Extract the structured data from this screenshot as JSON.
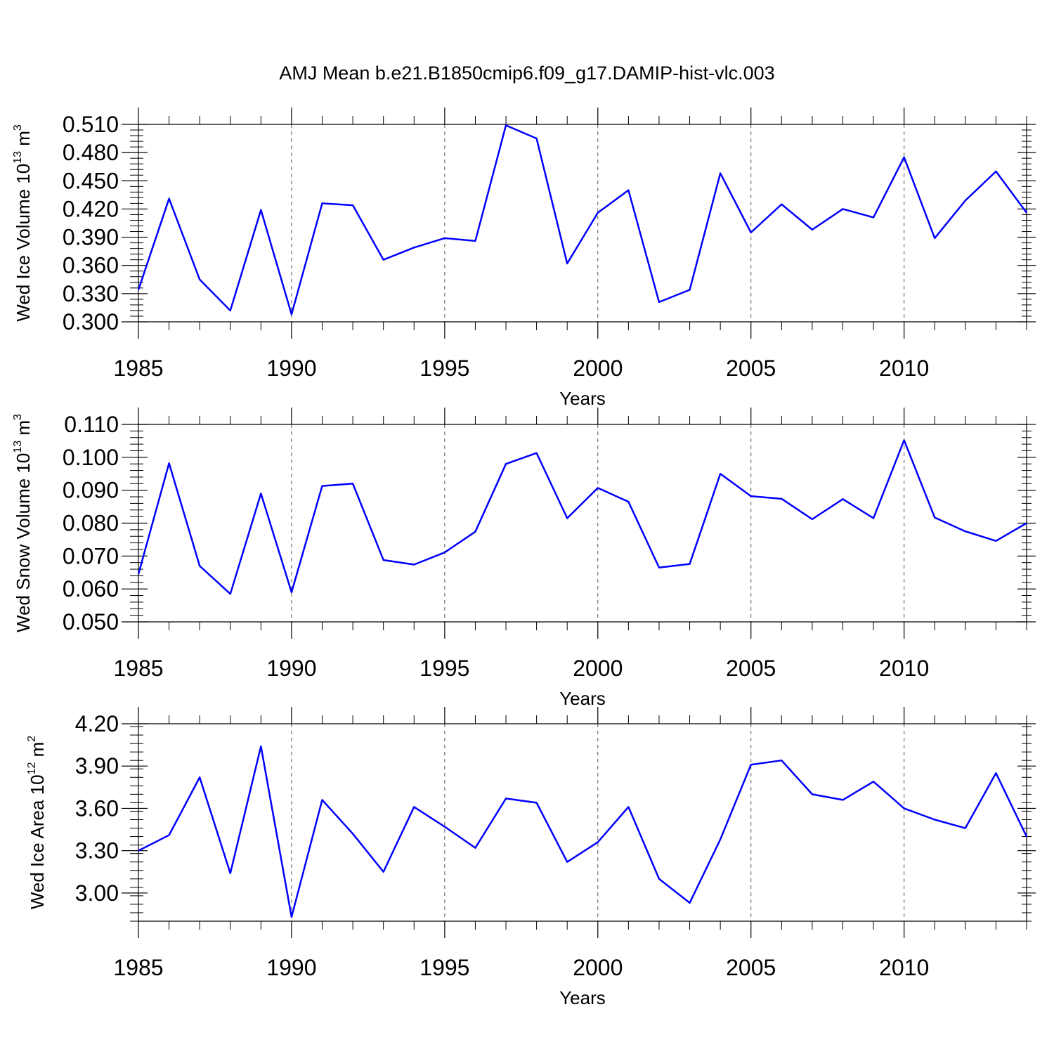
{
  "title": "AMJ Mean b.e21.B1850cmip6.f09_g17.DAMIP-hist-vlc.003",
  "colors": {
    "line": "#0000ff",
    "axis": "#000000",
    "grid": "#555555"
  },
  "chart_data": [
    {
      "type": "line",
      "ylabel": {
        "main": "Wed Ice Volume 10",
        "exp": "13",
        "unit": " m",
        "unit_exp": "3"
      },
      "xlabel": "Years",
      "xlim": [
        1985,
        2014
      ],
      "ylim": [
        0.3,
        0.51
      ],
      "yticks": [
        "0.300",
        "0.330",
        "0.360",
        "0.390",
        "0.420",
        "0.450",
        "0.480",
        "0.510"
      ],
      "xticks": [
        "1985",
        "1990",
        "1995",
        "2000",
        "2005",
        "2010"
      ],
      "x": [
        1985,
        1986,
        1987,
        1988,
        1989,
        1990,
        1991,
        1992,
        1993,
        1994,
        1995,
        1996,
        1997,
        1998,
        1999,
        2000,
        2001,
        2002,
        2003,
        2004,
        2005,
        2006,
        2007,
        2008,
        2009,
        2010,
        2011,
        2012,
        2013,
        2014
      ],
      "series": [
        {
          "values": [
            0.334,
            0.431,
            0.345,
            0.312,
            0.419,
            0.308,
            0.426,
            0.424,
            0.366,
            0.379,
            0.389,
            0.386,
            0.509,
            0.495,
            0.362,
            0.416,
            0.44,
            0.321,
            0.334,
            0.458,
            0.395,
            0.425,
            0.398,
            0.42,
            0.411,
            0.475,
            0.389,
            0.429,
            0.46,
            0.416
          ]
        }
      ]
    },
    {
      "type": "line",
      "ylabel": {
        "main": "Wed Snow Volume 10",
        "exp": "13",
        "unit": " m",
        "unit_exp": "3"
      },
      "xlabel": "Years",
      "xlim": [
        1985,
        2014
      ],
      "ylim": [
        0.05,
        0.11
      ],
      "yticks": [
        "0.050",
        "0.060",
        "0.070",
        "0.080",
        "0.090",
        "0.100",
        "0.110"
      ],
      "xticks": [
        "1985",
        "1990",
        "1995",
        "2000",
        "2005",
        "2010"
      ],
      "x": [
        1985,
        1986,
        1987,
        1988,
        1989,
        1990,
        1991,
        1992,
        1993,
        1994,
        1995,
        1996,
        1997,
        1998,
        1999,
        2000,
        2001,
        2002,
        2003,
        2004,
        2005,
        2006,
        2007,
        2008,
        2009,
        2010,
        2011,
        2012,
        2013,
        2014
      ],
      "series": [
        {
          "values": [
            0.0645,
            0.0982,
            0.067,
            0.0585,
            0.089,
            0.059,
            0.0913,
            0.092,
            0.0688,
            0.0674,
            0.0711,
            0.0774,
            0.098,
            0.1013,
            0.0815,
            0.0907,
            0.0865,
            0.0665,
            0.0676,
            0.095,
            0.0882,
            0.0874,
            0.0812,
            0.0873,
            0.0815,
            0.1052,
            0.0817,
            0.0775,
            0.0746,
            0.08
          ]
        }
      ]
    },
    {
      "type": "line",
      "ylabel": {
        "main": "Wed Ice Area 10",
        "exp": "12",
        "unit": " m",
        "unit_exp": "2"
      },
      "xlabel": "Years",
      "xlim": [
        1985,
        2014
      ],
      "ylim": [
        2.8,
        4.2
      ],
      "yticks": [
        "3.00",
        "3.30",
        "3.60",
        "3.90",
        "4.20"
      ],
      "ytick_values": [
        3.0,
        3.3,
        3.6,
        3.9,
        4.2
      ],
      "xticks": [
        "1985",
        "1990",
        "1995",
        "2000",
        "2005",
        "2010"
      ],
      "x": [
        1985,
        1986,
        1987,
        1988,
        1989,
        1990,
        1991,
        1992,
        1993,
        1994,
        1995,
        1996,
        1997,
        1998,
        1999,
        2000,
        2001,
        2002,
        2003,
        2004,
        2005,
        2006,
        2007,
        2008,
        2009,
        2010,
        2011,
        2012,
        2013,
        2014
      ],
      "series": [
        {
          "values": [
            3.3,
            3.41,
            3.82,
            3.14,
            4.04,
            2.83,
            3.66,
            3.42,
            3.15,
            3.61,
            3.47,
            3.32,
            3.67,
            3.64,
            3.22,
            3.36,
            3.61,
            3.1,
            2.93,
            3.38,
            3.91,
            3.94,
            3.7,
            3.66,
            3.79,
            3.6,
            3.52,
            3.46,
            3.85,
            3.4
          ]
        }
      ]
    }
  ]
}
